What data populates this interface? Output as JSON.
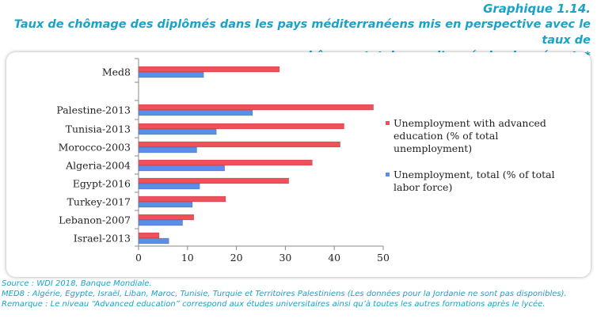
{
  "header": {
    "number": "Graphique 1.14.",
    "title_line1": "Taux de chômage des diplômés dans les pays méditerranéens mis en perspective avec le taux de",
    "title_line2": "chômage total, pour l’année la plus récente*"
  },
  "chart_data": {
    "type": "bar",
    "orientation": "horizontal",
    "categories": [
      "Med8",
      "Palestine-2013",
      "Tunisia-2013",
      "Morocco-2003",
      "Algeria-2004",
      "Egypt-2016",
      "Turkey-2017",
      "Lebanon-2007",
      "Israel-2013"
    ],
    "series": [
      {
        "name": "Unemployment with advanced education (% of total unemployment)",
        "legend_lines": [
          "Unemployment with advanced",
          "education (% of total",
          "unemployment)"
        ],
        "color": "#f0505a",
        "values": [
          28.8,
          48.0,
          42.0,
          41.2,
          35.5,
          30.7,
          17.8,
          11.3,
          4.2
        ]
      },
      {
        "name": "Unemployment, total (% of total labor force)",
        "legend_lines": [
          "Unemployment, total (% of total",
          "labor force)"
        ],
        "color": "#5a8ee8",
        "values": [
          13.3,
          23.3,
          15.9,
          11.9,
          17.6,
          12.5,
          11.0,
          9.0,
          6.2
        ]
      }
    ],
    "xlim": [
      0,
      50
    ],
    "xticks": [
      "0",
      "10",
      "20",
      "30",
      "40",
      "50"
    ],
    "xlabel": "",
    "ylabel": "",
    "grid": false,
    "legend_position": "right"
  },
  "notes": {
    "source": "Source : WDI 2018, Banque Mondiale.",
    "med8": "MED8 : Algérie, Egypte, Israël, Liban, Maroc, Tunisie, Turquie et Territoires Palestiniens (Les données pour la Jordanie ne sont pas disponibles).",
    "remark": "Remarque : Le niveau “Advanced education” correspond aux études universitaires ainsi qu’à toutes les autres formations après le lycée."
  }
}
